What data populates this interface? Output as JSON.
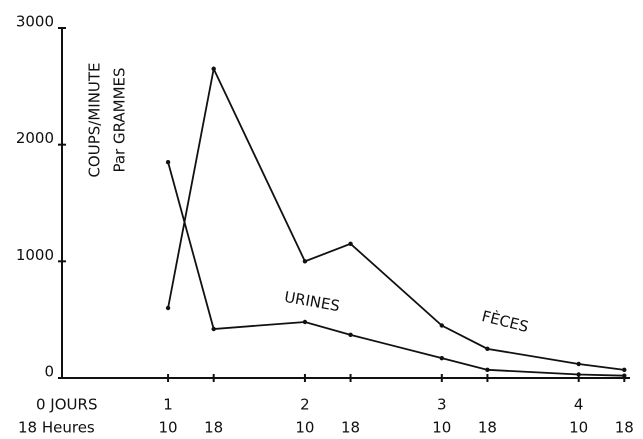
{
  "chart_data": {
    "type": "line",
    "y_label_1": "COUPS/MINUTE",
    "y_label_2": "Par GRAMMES",
    "day_axis_label": "0 JOURS",
    "hour_axis_label": "18 Heures",
    "x": [
      0,
      8,
      24,
      32,
      48,
      56,
      72,
      80
    ],
    "series": [
      {
        "name": "FÈCES",
        "color": "#111111",
        "values": [
          600,
          2650,
          1000,
          1150,
          450,
          250,
          120,
          70
        ]
      },
      {
        "name": "URINES",
        "color": "#111111",
        "values": [
          1850,
          420,
          480,
          370,
          170,
          70,
          30,
          20
        ]
      }
    ],
    "xlim": [
      -18.6,
      81
    ],
    "xticks": [
      {
        "value": 0,
        "label": "10"
      },
      {
        "value": 8,
        "label": "18"
      },
      {
        "value": 24,
        "label": "10"
      },
      {
        "value": 32,
        "label": "18"
      },
      {
        "value": 48,
        "label": "10"
      },
      {
        "value": 56,
        "label": "18"
      },
      {
        "value": 72,
        "label": "10"
      },
      {
        "value": 80,
        "label": "18"
      }
    ],
    "day_ticks": [
      {
        "value": 0,
        "label": "1"
      },
      {
        "value": 24,
        "label": "2"
      },
      {
        "value": 48,
        "label": "3"
      },
      {
        "value": 72,
        "label": "4"
      }
    ],
    "ylim": [
      0,
      3000
    ],
    "yticks": [
      0,
      1000,
      2000,
      3000
    ],
    "grid": false
  }
}
